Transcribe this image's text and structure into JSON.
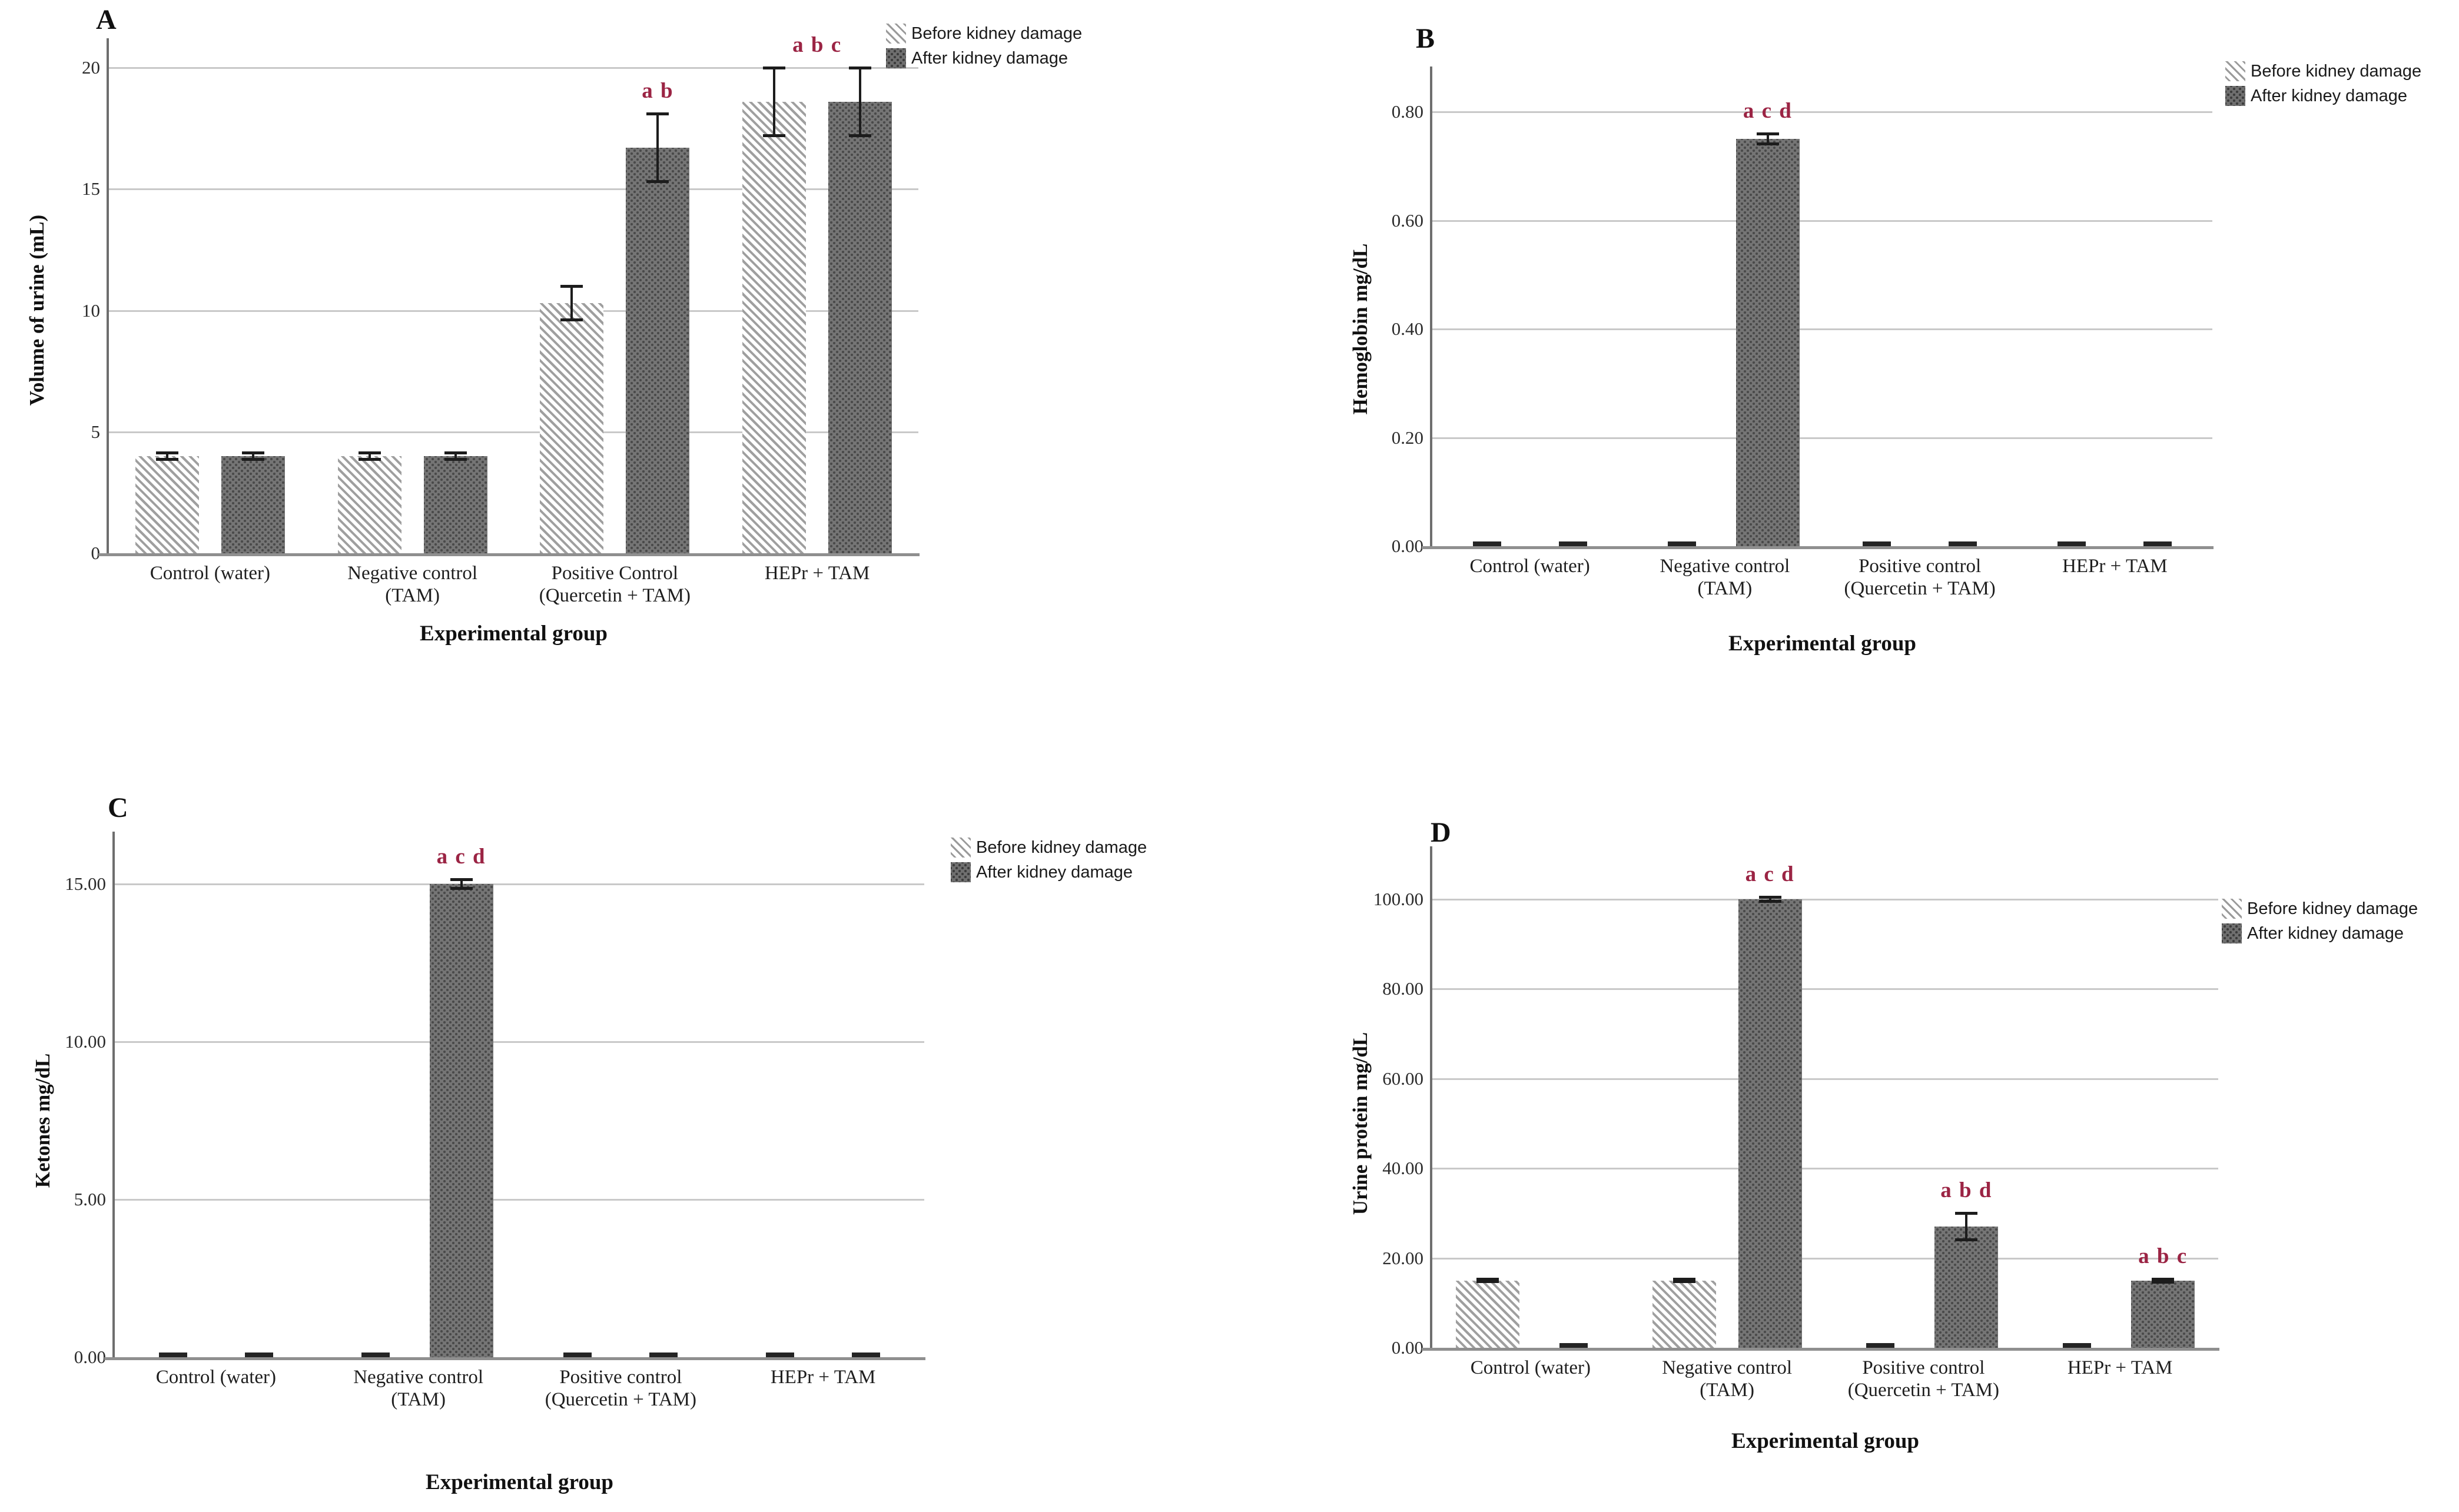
{
  "figure": {
    "background_color": "#ffffff",
    "annotation_color": "#9b2444",
    "gridline_color": "#c9c9c9",
    "bar_after_color": "#757575",
    "bar_before_hatch_color": "#9a9a9a",
    "error_bar_color": "#1c1c1c"
  },
  "chart_data": [
    {
      "type": "bar",
      "panel_label": "A",
      "ylabel": "Volume of urine (mL)",
      "xlabel": "Experimental group",
      "categories": [
        "Control (water)",
        "Negative control (TAM)",
        "Positive Control (Quercetin + TAM)",
        "HEPr + TAM"
      ],
      "series": [
        {
          "name": "Before kidney damage",
          "values": [
            4.0,
            4.0,
            10.3,
            18.6
          ],
          "errors": [
            0.15,
            0.15,
            0.7,
            1.4
          ]
        },
        {
          "name": "After kidney damage",
          "values": [
            4.0,
            4.0,
            16.7,
            18.6
          ],
          "errors": [
            0.15,
            0.15,
            1.4,
            1.4
          ]
        }
      ],
      "ylim": [
        0,
        20
      ],
      "yticks": [
        0,
        5,
        10,
        15,
        20
      ],
      "ytick_format": "int",
      "grid": true,
      "legend_position": "top-right",
      "annotations": [
        {
          "text": "a b",
          "group": 2,
          "anchor": "after"
        },
        {
          "text": "a b c",
          "group": 3,
          "anchor": "group"
        }
      ]
    },
    {
      "type": "bar",
      "panel_label": "B",
      "ylabel": "Hemoglobin mg/dL",
      "xlabel": "Experimental group",
      "categories": [
        "Control (water)",
        "Negative control (TAM)",
        "Positive control (Quercetin + TAM)",
        "HEPr + TAM"
      ],
      "series": [
        {
          "name": "Before kidney damage",
          "values": [
            0,
            0,
            0,
            0
          ],
          "errors": [
            0,
            0,
            0,
            0
          ]
        },
        {
          "name": "After kidney damage",
          "values": [
            0,
            0.75,
            0,
            0
          ],
          "errors": [
            0,
            0.01,
            0,
            0
          ]
        }
      ],
      "ylim": [
        0,
        0.8
      ],
      "yticks": [
        0,
        0.2,
        0.4,
        0.6,
        0.8
      ],
      "ytick_format": "2dp",
      "grid": true,
      "legend_position": "top-right",
      "annotations": [
        {
          "text": "a c d",
          "group": 1,
          "anchor": "after"
        }
      ]
    },
    {
      "type": "bar",
      "panel_label": "C",
      "ylabel": "Ketones mg/dL",
      "xlabel": "Experimental group",
      "categories": [
        "Control (water)",
        "Negative control (TAM)",
        "Positive control (Quercetin + TAM)",
        "HEPr + TAM"
      ],
      "series": [
        {
          "name": "Before kidney damage",
          "values": [
            0,
            0,
            0,
            0
          ],
          "errors": [
            0,
            0,
            0,
            0
          ]
        },
        {
          "name": "After kidney damage",
          "values": [
            0,
            15.0,
            0,
            0
          ],
          "errors": [
            0,
            0.15,
            0,
            0
          ]
        }
      ],
      "ylim": [
        0,
        15
      ],
      "yticks": [
        0,
        5.0,
        10.0,
        15.0
      ],
      "ytick_format": "2dp",
      "grid": true,
      "legend_position": "top-right",
      "annotations": [
        {
          "text": "a c d",
          "group": 1,
          "anchor": "after"
        }
      ]
    },
    {
      "type": "bar",
      "panel_label": "D",
      "ylabel": "Urine protein mg/dL",
      "xlabel": "Experimental group",
      "categories": [
        "Control (water)",
        "Negative control (TAM)",
        "Positive control (Quercetin + TAM)",
        "HEPr + TAM"
      ],
      "series": [
        {
          "name": "Before kidney damage",
          "values": [
            15.0,
            15.0,
            0,
            0
          ],
          "errors": [
            0.3,
            0.3,
            0,
            0
          ]
        },
        {
          "name": "After kidney damage",
          "values": [
            0,
            100.0,
            27.0,
            15.0
          ],
          "errors": [
            0,
            0.5,
            3.0,
            0.4
          ]
        }
      ],
      "ylim": [
        0,
        100
      ],
      "yticks": [
        0,
        20.0,
        40.0,
        60.0,
        80.0,
        100.0
      ],
      "ytick_format": "2dp",
      "grid": true,
      "legend_position": "top-right",
      "annotations": [
        {
          "text": "a c d",
          "group": 1,
          "anchor": "after"
        },
        {
          "text": "a b d",
          "group": 2,
          "anchor": "after"
        },
        {
          "text": "a b c",
          "group": 3,
          "anchor": "after"
        }
      ]
    }
  ]
}
